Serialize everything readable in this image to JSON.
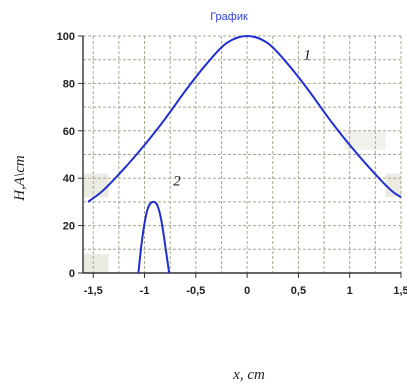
{
  "chart_data": {
    "type": "line",
    "title": "График",
    "xlabel": "x, cm",
    "ylabel": "H,A\\cm",
    "xlim": [
      -1.6,
      1.5
    ],
    "ylim": [
      0,
      100
    ],
    "x_ticks": [
      "-1,5",
      "-1",
      "-0,5",
      "0",
      "0,5",
      "1",
      "1,5"
    ],
    "x_tick_values": [
      -1.5,
      -1,
      -0.5,
      0,
      0.5,
      1,
      1.5
    ],
    "y_ticks": [
      "0",
      "20",
      "40",
      "60",
      "80",
      "100"
    ],
    "y_tick_values": [
      0,
      20,
      40,
      60,
      80,
      100
    ],
    "grid": true,
    "series": [
      {
        "name": "1",
        "color": "#1f2fd0",
        "x": [
          -1.55,
          -1.4,
          -1.2,
          -1.0,
          -0.8,
          -0.6,
          -0.4,
          -0.2,
          0.0,
          0.2,
          0.4,
          0.6,
          0.8,
          1.0,
          1.2,
          1.4,
          1.5
        ],
        "y": [
          30,
          35,
          44,
          54,
          65,
          77,
          88,
          97,
          100,
          97,
          88,
          77,
          65,
          54,
          44,
          35,
          32
        ]
      },
      {
        "name": "2",
        "color": "#1f2fd0",
        "x": [
          -1.06,
          -1.03,
          -1.0,
          -0.97,
          -0.94,
          -0.91,
          -0.88,
          -0.85,
          -0.82,
          -0.79,
          -0.76
        ],
        "y": [
          0,
          12,
          21,
          27,
          29.5,
          30,
          29,
          25,
          18,
          9,
          0
        ]
      }
    ]
  }
}
